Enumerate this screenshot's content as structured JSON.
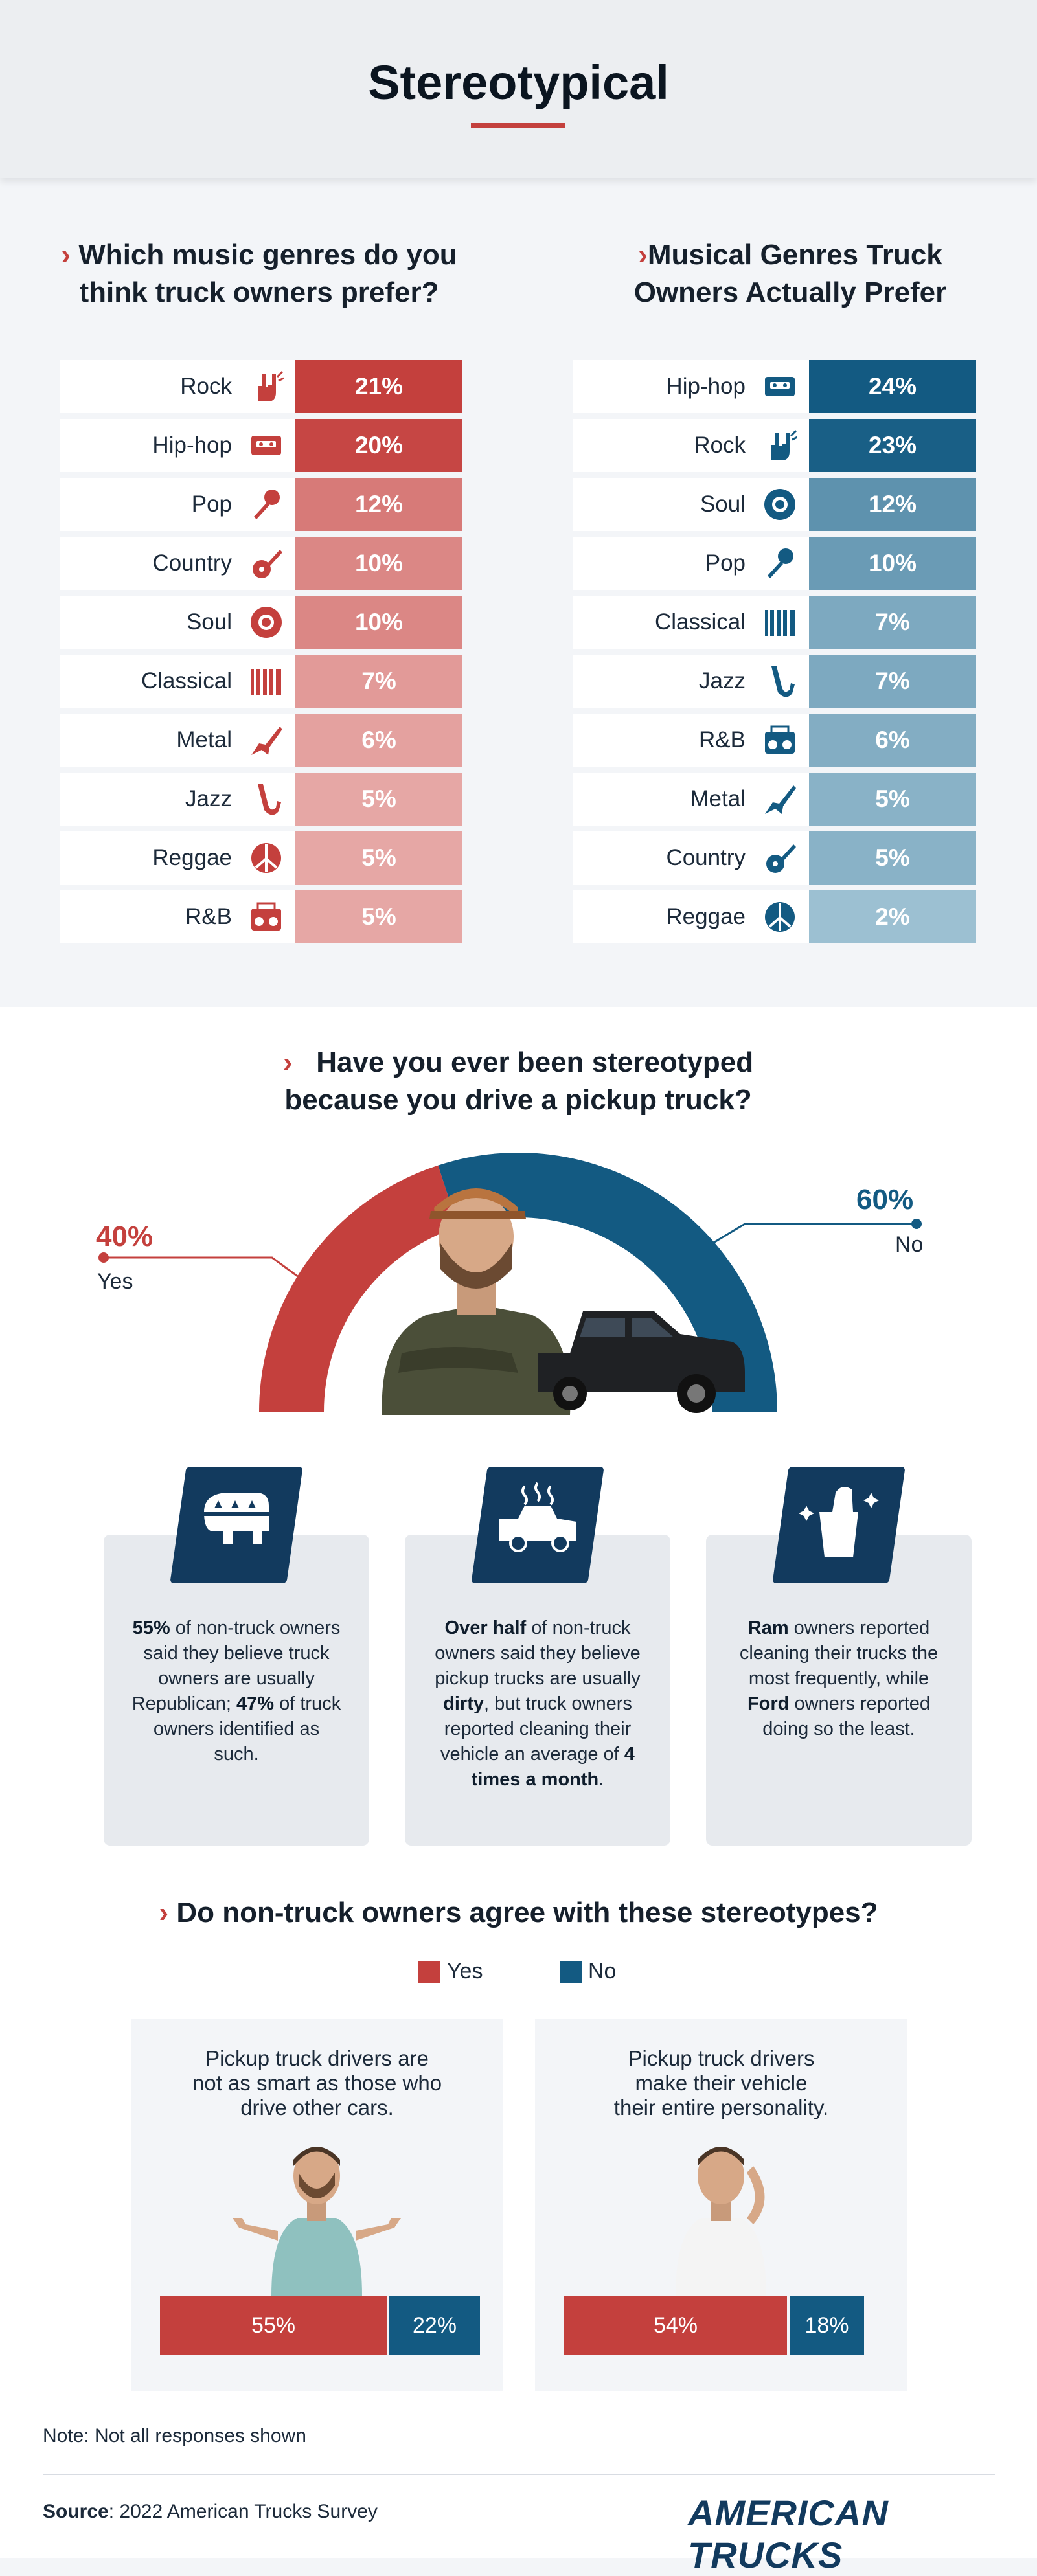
{
  "header": {
    "title": "Stereotypical"
  },
  "colors": {
    "red": "#c4403d",
    "blue": "#135a82",
    "navy": "#123a5e"
  },
  "perceived": {
    "title_line1": "Which music genres do you",
    "title_line2": "think truck owners prefer?",
    "rows": [
      {
        "genre": "Rock",
        "value": "21%",
        "icon": "rock-hand-icon"
      },
      {
        "genre": "Hip-hop",
        "value": "20%",
        "icon": "cassette-icon"
      },
      {
        "genre": "Pop",
        "value": "12%",
        "icon": "microphone-icon"
      },
      {
        "genre": "Country",
        "value": "10%",
        "icon": "acoustic-guitar-icon"
      },
      {
        "genre": "Soul",
        "value": "10%",
        "icon": "vinyl-record-icon"
      },
      {
        "genre": "Classical",
        "value": "7%",
        "icon": "piano-keys-icon"
      },
      {
        "genre": "Metal",
        "value": "6%",
        "icon": "electric-guitar-icon"
      },
      {
        "genre": "Jazz",
        "value": "5%",
        "icon": "saxophone-icon"
      },
      {
        "genre": "Reggae",
        "value": "5%",
        "icon": "peace-sign-icon"
      },
      {
        "genre": "R&B",
        "value": "5%",
        "icon": "boombox-icon"
      }
    ]
  },
  "actual": {
    "title_line1": "Musical Genres Truck",
    "title_line2": "Owners Actually Prefer",
    "rows": [
      {
        "genre": "Hip-hop",
        "value": "24%",
        "icon": "cassette-icon"
      },
      {
        "genre": "Rock",
        "value": "23%",
        "icon": "rock-hand-icon"
      },
      {
        "genre": "Soul",
        "value": "12%",
        "icon": "vinyl-record-icon"
      },
      {
        "genre": "Pop",
        "value": "10%",
        "icon": "microphone-icon"
      },
      {
        "genre": "Classical",
        "value": "7%",
        "icon": "piano-keys-icon"
      },
      {
        "genre": "Jazz",
        "value": "7%",
        "icon": "saxophone-icon"
      },
      {
        "genre": "R&B",
        "value": "6%",
        "icon": "boombox-icon"
      },
      {
        "genre": "Metal",
        "value": "5%",
        "icon": "electric-guitar-icon"
      },
      {
        "genre": "Country",
        "value": "5%",
        "icon": "acoustic-guitar-icon"
      },
      {
        "genre": "Reggae",
        "value": "2%",
        "icon": "peace-sign-icon"
      }
    ]
  },
  "stereotyped": {
    "title_line1": "Have you ever been stereotyped",
    "title_line2": "because you drive a pickup truck?",
    "yes_pct": "40%",
    "yes_label": "Yes",
    "no_pct": "60%",
    "no_label": "No"
  },
  "facts": [
    {
      "icon": "elephant-icon",
      "html_parts": [
        [
          "b",
          "55%"
        ],
        [
          "t",
          " of non-truck owners said they believe truck owners are usually Republican; "
        ],
        [
          "b",
          "47%"
        ],
        [
          "t",
          " of truck owners identified as such."
        ]
      ]
    },
    {
      "icon": "dirty-truck-icon",
      "html_parts": [
        [
          "b",
          "Over half"
        ],
        [
          "t",
          " of non-truck owners said they believe pickup trucks are usually "
        ],
        [
          "b",
          "dirty"
        ],
        [
          "t",
          ", but truck owners reported cleaning their vehicle an average of "
        ],
        [
          "b",
          "4 times a month"
        ],
        [
          "t",
          "."
        ]
      ]
    },
    {
      "icon": "cleaning-bucket-icon",
      "html_parts": [
        [
          "b",
          "Ram"
        ],
        [
          "t",
          " owners reported cleaning their trucks the most frequently, while "
        ],
        [
          "b",
          "Ford"
        ],
        [
          "t",
          " owners reported doing so the least."
        ]
      ]
    }
  ],
  "agree": {
    "title": "Do non-truck owners agree with these stereotypes?",
    "legend_yes": "Yes",
    "legend_no": "No",
    "items": [
      {
        "text_lines": [
          "Pickup truck drivers are",
          "not as smart as those who",
          "drive other cars."
        ],
        "yes": "55%",
        "no": "22%"
      },
      {
        "text_lines": [
          "Pickup truck drivers",
          "make their vehicle",
          "their entire personality."
        ],
        "yes": "54%",
        "no": "18%"
      }
    ]
  },
  "chart_data": [
    {
      "type": "bar",
      "title": "Which music genres do you think truck owners prefer?",
      "categories": [
        "Rock",
        "Hip-hop",
        "Pop",
        "Country",
        "Soul",
        "Classical",
        "Metal",
        "Jazz",
        "Reggae",
        "R&B"
      ],
      "values": [
        21,
        20,
        12,
        10,
        10,
        7,
        6,
        5,
        5,
        5
      ]
    },
    {
      "type": "bar",
      "title": "Musical Genres Truck Owners Actually Prefer",
      "categories": [
        "Hip-hop",
        "Rock",
        "Soul",
        "Pop",
        "Classical",
        "Jazz",
        "R&B",
        "Metal",
        "Country",
        "Reggae"
      ],
      "values": [
        24,
        23,
        12,
        10,
        7,
        7,
        6,
        5,
        5,
        2
      ]
    },
    {
      "type": "pie",
      "title": "Have you ever been stereotyped because you drive a pickup truck?",
      "categories": [
        "Yes",
        "No"
      ],
      "values": [
        40,
        60
      ]
    },
    {
      "type": "bar",
      "title": "Do non-truck owners agree with these stereotypes?",
      "categories": [
        "Pickup truck drivers are not as smart as those who drive other cars.",
        "Pickup truck drivers make their vehicle their entire personality."
      ],
      "series": [
        {
          "name": "Yes",
          "values": [
            55,
            54
          ]
        },
        {
          "name": "No",
          "values": [
            22,
            18
          ]
        }
      ]
    }
  ],
  "footer": {
    "note": "Note: Not all responses shown",
    "source_label": "Source",
    "source_text": ": 2022 American Trucks Survey",
    "logo": "AMERICAN TRUCKS"
  }
}
